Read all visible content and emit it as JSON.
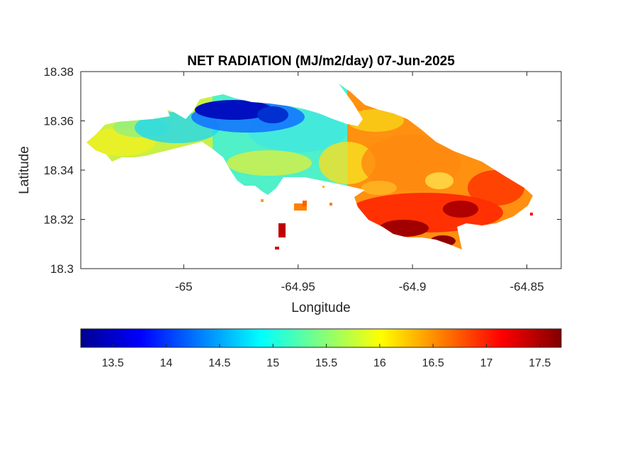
{
  "chart_data": {
    "type": "heatmap",
    "title": "NET RADIATION (MJ/m2/day) 07-Jun-2025",
    "xlabel": "Longitude",
    "ylabel": "Latitude",
    "xlim": [
      -65.045,
      -64.835
    ],
    "ylim": [
      18.3,
      18.38
    ],
    "x_ticks": [
      -65,
      -64.95,
      -64.9,
      -64.85
    ],
    "x_tick_labels": [
      "-65",
      "-64.95",
      "-64.9",
      "-64.85"
    ],
    "y_ticks": [
      18.3,
      18.32,
      18.34,
      18.36,
      18.38
    ],
    "y_tick_labels": [
      "18.3",
      "18.32",
      "18.34",
      "18.36",
      "18.38"
    ],
    "colorbar": {
      "orientation": "horizontal",
      "colormap": "jet",
      "range": [
        13.2,
        17.7
      ],
      "ticks": [
        13.5,
        14,
        14.5,
        15,
        15.5,
        16,
        16.5,
        17,
        17.5
      ],
      "tick_labels": [
        "13.5",
        "14",
        "14.5",
        "15",
        "15.5",
        "16",
        "16.5",
        "17",
        "17.5"
      ]
    },
    "regions": [
      {
        "name": "west",
        "value_range": [
          15.2,
          15.8
        ],
        "dominant_color": "yellow-green"
      },
      {
        "name": "north-central",
        "value_range": [
          13.2,
          14.2
        ],
        "dominant_color": "dark blue"
      },
      {
        "name": "central",
        "value_range": [
          14.5,
          15.5
        ],
        "dominant_color": "cyan"
      },
      {
        "name": "east",
        "value_range": [
          16.3,
          17.0
        ],
        "dominant_color": "orange"
      },
      {
        "name": "south-east",
        "value_range": [
          17.0,
          17.7
        ],
        "dominant_color": "red/dark red"
      }
    ],
    "grid": false
  }
}
